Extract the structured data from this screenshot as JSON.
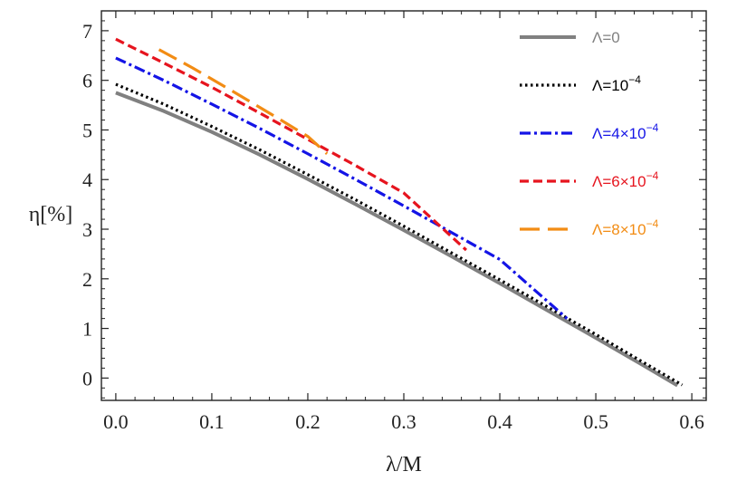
{
  "chart_data": {
    "type": "line",
    "title": "",
    "xlabel": "λ/M",
    "ylabel": "η[%]",
    "xlim": [
      -0.015,
      0.615
    ],
    "ylim": [
      -0.45,
      7.4
    ],
    "xticks": [
      0.0,
      0.1,
      0.2,
      0.3,
      0.4,
      0.5,
      0.6
    ],
    "xtick_labels": [
      "0.0",
      "0.1",
      "0.2",
      "0.3",
      "0.4",
      "0.5",
      "0.6"
    ],
    "yticks": [
      0,
      1,
      2,
      3,
      4,
      5,
      6,
      7
    ],
    "ytick_labels": [
      "0",
      "1",
      "2",
      "3",
      "4",
      "5",
      "6",
      "7"
    ],
    "grid": false,
    "legend_position": "top-right",
    "series": [
      {
        "name": "Λ=0",
        "label_base": "Λ=0",
        "label_sup": "",
        "color": "#808080",
        "style": "solid",
        "x": [
          0.0,
          0.05,
          0.1,
          0.15,
          0.2,
          0.25,
          0.3,
          0.35,
          0.4,
          0.45,
          0.5,
          0.55,
          0.585
        ],
        "y": [
          5.75,
          5.38,
          4.96,
          4.5,
          4.01,
          3.5,
          2.98,
          2.45,
          1.91,
          1.36,
          0.81,
          0.25,
          -0.15
        ]
      },
      {
        "name": "Λ=10^-4",
        "label_base": "Λ=10",
        "label_sup": "−4",
        "color": "#000000",
        "style": "dotted",
        "x": [
          0.0,
          0.05,
          0.1,
          0.15,
          0.2,
          0.25,
          0.3,
          0.35,
          0.4,
          0.45,
          0.5,
          0.55,
          0.59
        ],
        "y": [
          5.92,
          5.52,
          5.07,
          4.6,
          4.1,
          3.59,
          3.06,
          2.52,
          1.98,
          1.43,
          0.88,
          0.31,
          -0.14
        ]
      },
      {
        "name": "Λ=4×10^-4",
        "label_base": "Λ=4×10",
        "label_sup": "−4",
        "color": "#1414e6",
        "style": "dashdot",
        "x": [
          0.0,
          0.05,
          0.1,
          0.15,
          0.2,
          0.25,
          0.3,
          0.35,
          0.4,
          0.47
        ],
        "y": [
          6.45,
          6.0,
          5.52,
          5.03,
          4.52,
          4.0,
          3.47,
          2.93,
          2.39,
          1.2
        ]
      },
      {
        "name": "Λ=6×10^-4",
        "label_base": "Λ=6×10",
        "label_sup": "−4",
        "color": "#e6141e",
        "style": "dashed",
        "x": [
          0.0,
          0.05,
          0.1,
          0.15,
          0.2,
          0.25,
          0.3,
          0.365
        ],
        "y": [
          6.83,
          6.35,
          5.86,
          5.34,
          4.81,
          4.28,
          3.73,
          2.58
        ]
      },
      {
        "name": "Λ=8×10^-4",
        "label_base": "Λ=8×10",
        "label_sup": "−4",
        "color": "#f28c14",
        "style": "longdash",
        "x": [
          0.045,
          0.08,
          0.12,
          0.16,
          0.2,
          0.22
        ],
        "y": [
          6.62,
          6.25,
          5.8,
          5.34,
          4.87,
          4.52
        ]
      }
    ]
  }
}
